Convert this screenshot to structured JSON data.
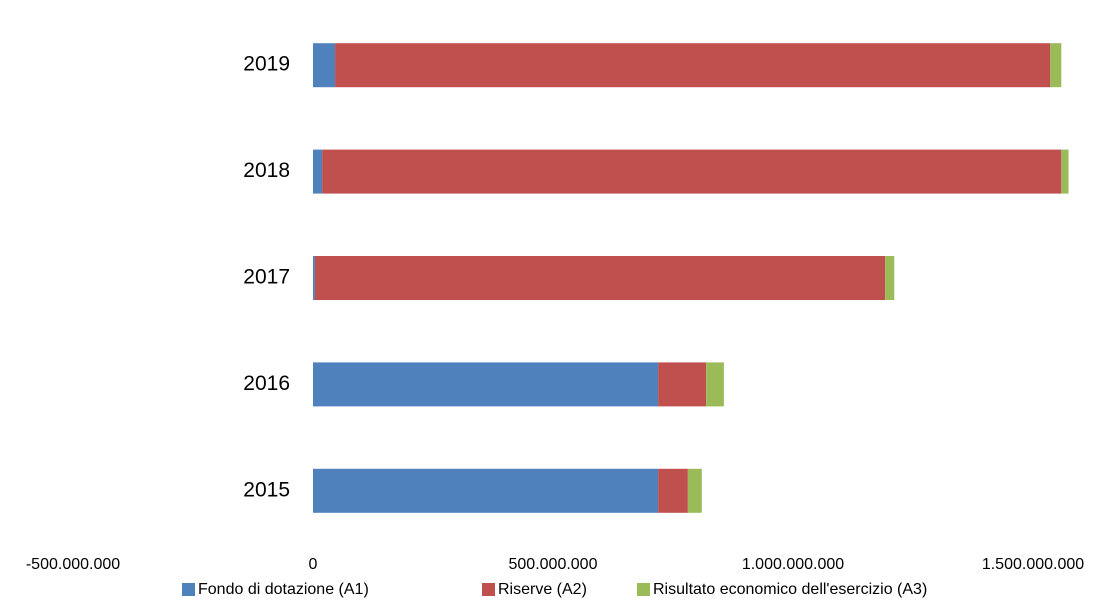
{
  "chart_data": {
    "type": "bar",
    "orientation": "horizontal",
    "stacked": true,
    "categories": [
      "2015",
      "2016",
      "2017",
      "2018",
      "2019"
    ],
    "series": [
      {
        "name": "Fondo di dotazione (A1)",
        "color": "#4f81bd",
        "values": [
          719000000,
          719000000,
          4000000,
          19000000,
          46000000
        ]
      },
      {
        "name": "Riserve (A2)",
        "color": "#c0504d",
        "values": [
          62000000,
          100000000,
          1188000000,
          1540000000,
          1490000000
        ]
      },
      {
        "name": "Risultato economico dell'esercizio (A3)",
        "color": "#9bbb59",
        "values": [
          29000000,
          37000000,
          19000000,
          15000000,
          23000000
        ]
      }
    ],
    "xlim": [
      -500000000,
      1500000000
    ],
    "xticks": [
      {
        "value": -500000000,
        "label": "-500.000.000"
      },
      0,
      {
        "value": 500000000,
        "label": "500.000.000"
      },
      {
        "value": 1000000000,
        "label": "1.000.000.000"
      },
      {
        "value": 1500000000,
        "label": "1.500.000.000"
      }
    ],
    "legend": "bottom",
    "grid": false
  }
}
